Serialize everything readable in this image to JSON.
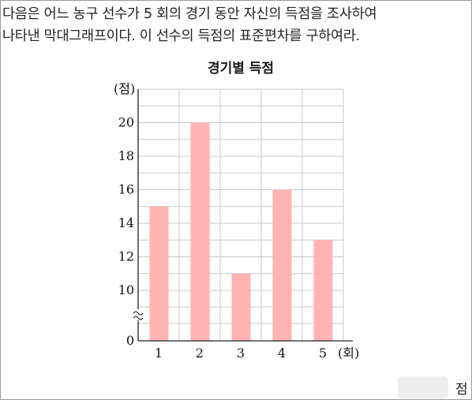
{
  "question": {
    "line1": "다음은 어느 농구 선수가 5 회의 경기 동안 자신의 득점을 조사하여",
    "line2": "나타낸 막대그래프이다. 이 선수의 득점의 표준편차를 구하여라."
  },
  "chart_data": {
    "type": "bar",
    "title": "경기별 득점",
    "categories": [
      "1",
      "2",
      "3",
      "4",
      "5"
    ],
    "values": [
      15,
      20,
      11,
      16,
      13
    ],
    "xlabel": "(회)",
    "ylabel": "(점)",
    "ylim": [
      0,
      21
    ],
    "axis_break": true,
    "y_ticks": [
      "10",
      "12",
      "14",
      "16",
      "18",
      "20"
    ],
    "y_zero_label": "0",
    "grid": true,
    "bar_color": "#ffb3b3"
  },
  "answer": {
    "value": "",
    "unit": "점"
  }
}
